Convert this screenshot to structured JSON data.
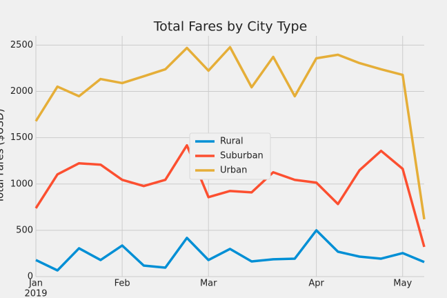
{
  "chart_data": {
    "type": "line",
    "title": "Total Fares by City Type",
    "y_label": "Total Fares ($USD)",
    "year_label": "2019",
    "categories": [
      "Jan",
      null,
      null,
      null,
      "Feb",
      null,
      null,
      null,
      "Mar",
      null,
      null,
      null,
      null,
      "Apr",
      null,
      null,
      null,
      "May",
      null
    ],
    "series": [
      {
        "name": "Rural",
        "color": "#008fd5",
        "values": [
          179,
          67,
          306,
          179,
          336,
          119,
          97,
          418,
          179,
          299,
          164,
          187,
          194,
          500,
          269,
          216,
          194,
          254,
          157
        ]
      },
      {
        "name": "Suburban",
        "color": "#fc4f30",
        "values": [
          739,
          1104,
          1224,
          1209,
          1045,
          978,
          1045,
          1418,
          858,
          925,
          910,
          1127,
          1045,
          1015,
          784,
          1149,
          1358,
          1164,
          321
        ]
      },
      {
        "name": "Urban",
        "color": "#e5ae38",
        "values": [
          1679,
          2052,
          1948,
          2134,
          2090,
          2164,
          2239,
          2470,
          2224,
          2478,
          2045,
          2373,
          1948,
          2358,
          2396,
          2306,
          2239,
          2179,
          619
        ]
      }
    ],
    "ylim": [
      0,
      2600
    ],
    "yticks": [
      0,
      500,
      1000,
      1500,
      2000,
      2500
    ],
    "grid": true,
    "legend": "center"
  }
}
